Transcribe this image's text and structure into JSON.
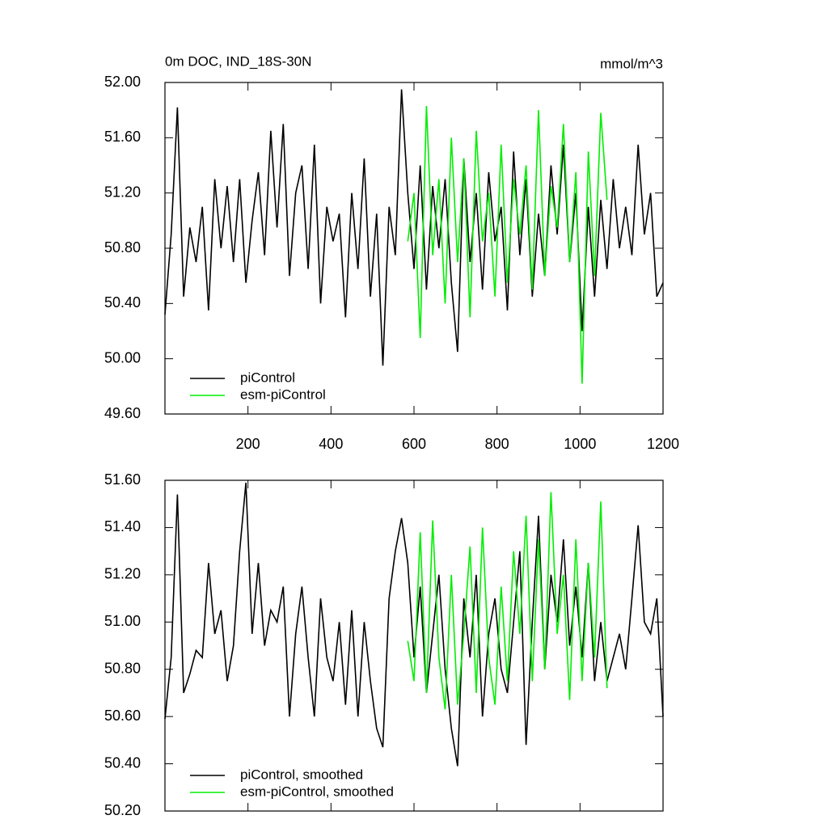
{
  "chart_data": [
    {
      "type": "line",
      "title": "0m DOC, IND_18S-30N",
      "units_label": "mmol/m^3",
      "xlim": [
        0,
        1200
      ],
      "xticks": [
        200,
        400,
        600,
        800,
        1000,
        1200
      ],
      "show_xtick_labels": true,
      "ylim": [
        49.6,
        52.0
      ],
      "yticks": [
        {
          "value": 49.6,
          "label": "49.60"
        },
        {
          "value": 50.0,
          "label": "50.00"
        },
        {
          "value": 50.4,
          "label": "50.40"
        },
        {
          "value": 50.8,
          "label": "50.80"
        },
        {
          "value": 51.2,
          "label": "51.20"
        },
        {
          "value": 51.6,
          "label": "51.60"
        },
        {
          "value": 52.0,
          "label": "52.00"
        }
      ],
      "series": [
        {
          "name": "piControl",
          "color": "#000000",
          "x": [
            0,
            15,
            30,
            45,
            60,
            75,
            90,
            105,
            120,
            135,
            150,
            165,
            180,
            195,
            210,
            225,
            240,
            255,
            270,
            285,
            300,
            315,
            330,
            345,
            360,
            375,
            390,
            405,
            420,
            435,
            450,
            465,
            480,
            495,
            510,
            525,
            540,
            555,
            570,
            585,
            600,
            615,
            630,
            645,
            660,
            675,
            690,
            705,
            720,
            735,
            750,
            765,
            780,
            795,
            810,
            825,
            840,
            855,
            870,
            885,
            900,
            915,
            930,
            945,
            960,
            975,
            990,
            1005,
            1020,
            1035,
            1050,
            1065,
            1080,
            1095,
            1110,
            1125,
            1140,
            1155,
            1170,
            1185,
            1200
          ],
          "values": [
            50.32,
            50.9,
            51.82,
            50.45,
            50.95,
            50.7,
            51.1,
            50.35,
            51.3,
            50.8,
            51.25,
            50.7,
            51.3,
            50.55,
            51.0,
            51.35,
            50.75,
            51.65,
            50.95,
            51.7,
            50.6,
            51.2,
            51.4,
            50.65,
            51.55,
            50.4,
            51.1,
            50.85,
            51.05,
            50.3,
            51.2,
            50.65,
            51.45,
            50.45,
            51.05,
            49.95,
            51.1,
            50.75,
            51.95,
            51.2,
            50.65,
            51.4,
            50.5,
            51.25,
            50.8,
            51.3,
            50.55,
            50.05,
            51.45,
            50.7,
            51.2,
            50.5,
            51.35,
            50.85,
            51.1,
            50.35,
            51.5,
            50.75,
            51.3,
            50.45,
            51.05,
            50.6,
            51.4,
            50.9,
            51.55,
            50.7,
            51.2,
            50.2,
            51.1,
            50.45,
            51.15,
            50.65,
            51.3,
            50.8,
            51.1,
            50.75,
            51.55,
            50.9,
            51.2,
            50.45,
            50.55
          ]
        },
        {
          "name": "esm-piControl",
          "color": "#00ee00",
          "x": [
            585,
            600,
            615,
            630,
            645,
            660,
            675,
            690,
            705,
            720,
            735,
            750,
            765,
            780,
            795,
            810,
            825,
            840,
            855,
            870,
            885,
            900,
            915,
            930,
            945,
            960,
            975,
            990,
            1005,
            1020,
            1035,
            1050,
            1065
          ],
          "values": [
            50.85,
            51.2,
            50.15,
            51.83,
            50.75,
            51.3,
            50.4,
            51.6,
            50.7,
            51.45,
            50.3,
            51.65,
            50.85,
            51.2,
            50.45,
            51.55,
            50.55,
            51.3,
            50.9,
            51.4,
            50.5,
            51.8,
            50.6,
            51.25,
            50.95,
            51.7,
            50.7,
            51.35,
            49.82,
            51.5,
            50.6,
            51.78,
            51.15
          ]
        }
      ]
    },
    {
      "type": "line",
      "xlim": [
        0,
        1200
      ],
      "xticks": [
        200,
        400,
        600,
        800,
        1000,
        1200
      ],
      "show_xtick_labels": false,
      "ylim": [
        50.2,
        51.6
      ],
      "yticks": [
        {
          "value": 50.2,
          "label": "50.20"
        },
        {
          "value": 50.4,
          "label": "50.40"
        },
        {
          "value": 50.6,
          "label": "50.60"
        },
        {
          "value": 50.8,
          "label": "50.80"
        },
        {
          "value": 51.0,
          "label": "51.00"
        },
        {
          "value": 51.2,
          "label": "51.20"
        },
        {
          "value": 51.4,
          "label": "51.40"
        },
        {
          "value": 51.6,
          "label": "51.60"
        }
      ],
      "series": [
        {
          "name": "piControl, smoothed",
          "color": "#000000",
          "x": [
            0,
            15,
            30,
            45,
            60,
            75,
            90,
            105,
            120,
            135,
            150,
            165,
            180,
            195,
            210,
            225,
            240,
            255,
            270,
            285,
            300,
            315,
            330,
            345,
            360,
            375,
            390,
            405,
            420,
            435,
            450,
            465,
            480,
            495,
            510,
            525,
            540,
            555,
            570,
            585,
            600,
            615,
            630,
            645,
            660,
            675,
            690,
            705,
            720,
            735,
            750,
            765,
            780,
            795,
            810,
            825,
            840,
            855,
            870,
            885,
            900,
            915,
            930,
            945,
            960,
            975,
            990,
            1005,
            1020,
            1035,
            1050,
            1065,
            1080,
            1095,
            1110,
            1125,
            1140,
            1155,
            1170,
            1185,
            1200
          ],
          "values": [
            50.59,
            50.85,
            51.54,
            50.7,
            50.78,
            50.88,
            50.85,
            51.25,
            50.95,
            51.05,
            50.75,
            50.9,
            51.3,
            51.59,
            50.95,
            51.25,
            50.9,
            51.05,
            51.0,
            51.15,
            50.6,
            50.95,
            51.15,
            50.85,
            50.6,
            51.1,
            50.85,
            50.75,
            51.0,
            50.65,
            51.05,
            50.6,
            51.0,
            50.75,
            50.55,
            50.47,
            51.1,
            51.3,
            51.44,
            51.25,
            50.85,
            51.15,
            50.7,
            50.95,
            51.2,
            50.8,
            50.55,
            50.39,
            51.1,
            50.85,
            51.2,
            50.6,
            50.95,
            51.1,
            50.8,
            50.7,
            51.0,
            51.3,
            50.48,
            51.0,
            51.45,
            50.8,
            51.2,
            51.0,
            51.35,
            50.9,
            51.15,
            50.85,
            51.25,
            50.75,
            51.0,
            50.75,
            50.85,
            50.95,
            50.8,
            51.1,
            51.41,
            51.0,
            50.95,
            51.1,
            50.6
          ]
        },
        {
          "name": "esm-piControl, smoothed",
          "color": "#00ee00",
          "x": [
            585,
            600,
            615,
            630,
            645,
            660,
            675,
            690,
            705,
            720,
            735,
            750,
            765,
            780,
            795,
            810,
            825,
            840,
            855,
            870,
            885,
            900,
            915,
            930,
            945,
            960,
            975,
            990,
            1005,
            1020,
            1035,
            1050,
            1065
          ],
          "values": [
            50.92,
            50.75,
            51.38,
            50.7,
            51.43,
            50.85,
            50.63,
            51.2,
            50.65,
            50.95,
            51.32,
            50.7,
            51.4,
            50.85,
            50.65,
            51.15,
            50.75,
            51.3,
            50.95,
            51.45,
            50.75,
            51.35,
            50.8,
            51.55,
            50.95,
            51.2,
            50.67,
            51.35,
            50.75,
            51.25,
            50.85,
            51.51,
            50.72
          ]
        }
      ]
    }
  ]
}
